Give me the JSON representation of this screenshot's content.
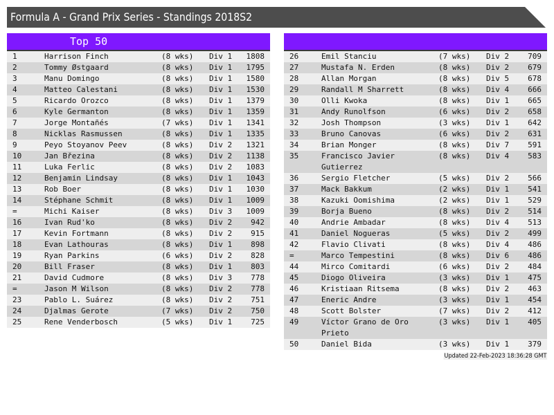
{
  "title": "Formula A - Grand Prix Series - Standings 2018S2",
  "colors": {
    "header": "#4d4d4d",
    "accent": "#7f18ff",
    "row_light": "#eeeeee",
    "row_dark": "#d6d6d6"
  },
  "panels": [
    {
      "title": "Top 50",
      "rows": [
        [
          "1",
          "Harrison Finch",
          "(8 wks)",
          "Div 1",
          "1808"
        ],
        [
          "2",
          "Tommy Østgaard",
          "(8 wks)",
          "Div 1",
          "1795"
        ],
        [
          "3",
          "Manu Domingo",
          "(8 wks)",
          "Div 1",
          "1580"
        ],
        [
          "4",
          "Matteo Calestani",
          "(8 wks)",
          "Div 1",
          "1530"
        ],
        [
          "5",
          "Ricardo Orozco",
          "(8 wks)",
          "Div 1",
          "1379"
        ],
        [
          "6",
          "Kyle Germanton",
          "(8 wks)",
          "Div 1",
          "1359"
        ],
        [
          "7",
          "Jorge Montañés",
          "(7 wks)",
          "Div 1",
          "1341"
        ],
        [
          "8",
          "Nicklas Rasmussen",
          "(8 wks)",
          "Div 1",
          "1335"
        ],
        [
          "9",
          "Peyo Stoyanov Peev",
          "(8 wks)",
          "Div 2",
          "1321"
        ],
        [
          "10",
          "Jan Březina",
          "(8 wks)",
          "Div 2",
          "1138"
        ],
        [
          "11",
          "Luka Ferlic",
          "(8 wks)",
          "Div 2",
          "1083"
        ],
        [
          "12",
          "Benjamin Lindsay",
          "(8 wks)",
          "Div 1",
          "1043"
        ],
        [
          "13",
          "Rob Boer",
          "(8 wks)",
          "Div 1",
          "1030"
        ],
        [
          "14",
          "Stéphane Schmit",
          "(8 wks)",
          "Div 1",
          "1009"
        ],
        [
          "=",
          "Michi Kaiser",
          "(8 wks)",
          "Div 3",
          "1009"
        ],
        [
          "16",
          "Ivan Rud'ko",
          "(8 wks)",
          "Div 2",
          "942"
        ],
        [
          "17",
          "Kevin Fortmann",
          "(8 wks)",
          "Div 2",
          "915"
        ],
        [
          "18",
          "Evan Lathouras",
          "(8 wks)",
          "Div 1",
          "898"
        ],
        [
          "19",
          "Ryan Parkins",
          "(6 wks)",
          "Div 2",
          "828"
        ],
        [
          "20",
          "Bill Fraser",
          "(8 wks)",
          "Div 1",
          "803"
        ],
        [
          "21",
          "David Cudmore",
          "(8 wks)",
          "Div 3",
          "778"
        ],
        [
          "=",
          "Jason M Wilson",
          "(8 wks)",
          "Div 2",
          "778"
        ],
        [
          "23",
          "Pablo L. Suárez",
          "(8 wks)",
          "Div 2",
          "751"
        ],
        [
          "24",
          "Djalmas Gerote",
          "(7 wks)",
          "Div 2",
          "750"
        ],
        [
          "25",
          "Rene Venderbosch",
          "(5 wks)",
          "Div 1",
          "725"
        ]
      ]
    },
    {
      "title": "",
      "rows": [
        [
          "26",
          "Emil Stanciu",
          "(7 wks)",
          "Div 2",
          "709"
        ],
        [
          "27",
          "Mustafa N. Erden",
          "(8 wks)",
          "Div 2",
          "679"
        ],
        [
          "28",
          "Allan Morgan",
          "(8 wks)",
          "Div 5",
          "678"
        ],
        [
          "29",
          "Randall M Sharrett",
          "(8 wks)",
          "Div 4",
          "666"
        ],
        [
          "30",
          "Olli Kwoka",
          "(8 wks)",
          "Div 1",
          "665"
        ],
        [
          "31",
          "Andy Runolfson",
          "(6 wks)",
          "Div 2",
          "658"
        ],
        [
          "32",
          "Josh Thompson",
          "(3 wks)",
          "Div 1",
          "642"
        ],
        [
          "33",
          "Bruno Canovas",
          "(6 wks)",
          "Div 2",
          "631"
        ],
        [
          "34",
          "Brian Monger",
          "(8 wks)",
          "Div 7",
          "591"
        ],
        [
          "35",
          "Francisco Javier Gutierrez",
          "(8 wks)",
          "Div 4",
          "583"
        ],
        [
          "36",
          "Sergio Fletcher",
          "(5 wks)",
          "Div 2",
          "566"
        ],
        [
          "37",
          "Mack Bakkum",
          "(2 wks)",
          "Div 1",
          "541"
        ],
        [
          "38",
          "Kazuki Oomishima",
          "(2 wks)",
          "Div 1",
          "529"
        ],
        [
          "39",
          "Borja Bueno",
          "(8 wks)",
          "Div 2",
          "514"
        ],
        [
          "40",
          "Andrie Ambadar",
          "(8 wks)",
          "Div 4",
          "513"
        ],
        [
          "41",
          "Daniel Nogueras",
          "(5 wks)",
          "Div 2",
          "499"
        ],
        [
          "42",
          "Flavio Clivati",
          "(8 wks)",
          "Div 4",
          "486"
        ],
        [
          "=",
          "Marco Tempestini",
          "(8 wks)",
          "Div 6",
          "486"
        ],
        [
          "44",
          "Mirco Comitardi",
          "(6 wks)",
          "Div 2",
          "484"
        ],
        [
          "45",
          "Diogo Oliveira",
          "(3 wks)",
          "Div 1",
          "475"
        ],
        [
          "46",
          "Kristiaan Ritsema",
          "(8 wks)",
          "Div 2",
          "463"
        ],
        [
          "47",
          "Eneric Andre",
          "(3 wks)",
          "Div 1",
          "454"
        ],
        [
          "48",
          "Scott Bolster",
          "(7 wks)",
          "Div 2",
          "412"
        ],
        [
          "49",
          "Víctor Grano de Oro Prieto",
          "(3 wks)",
          "Div 1",
          "405"
        ],
        [
          "50",
          "Daniel Bida",
          "(3 wks)",
          "Div 1",
          "379"
        ]
      ]
    }
  ],
  "updated": "Updated 22-Feb-2023 18:36:28 GMT"
}
